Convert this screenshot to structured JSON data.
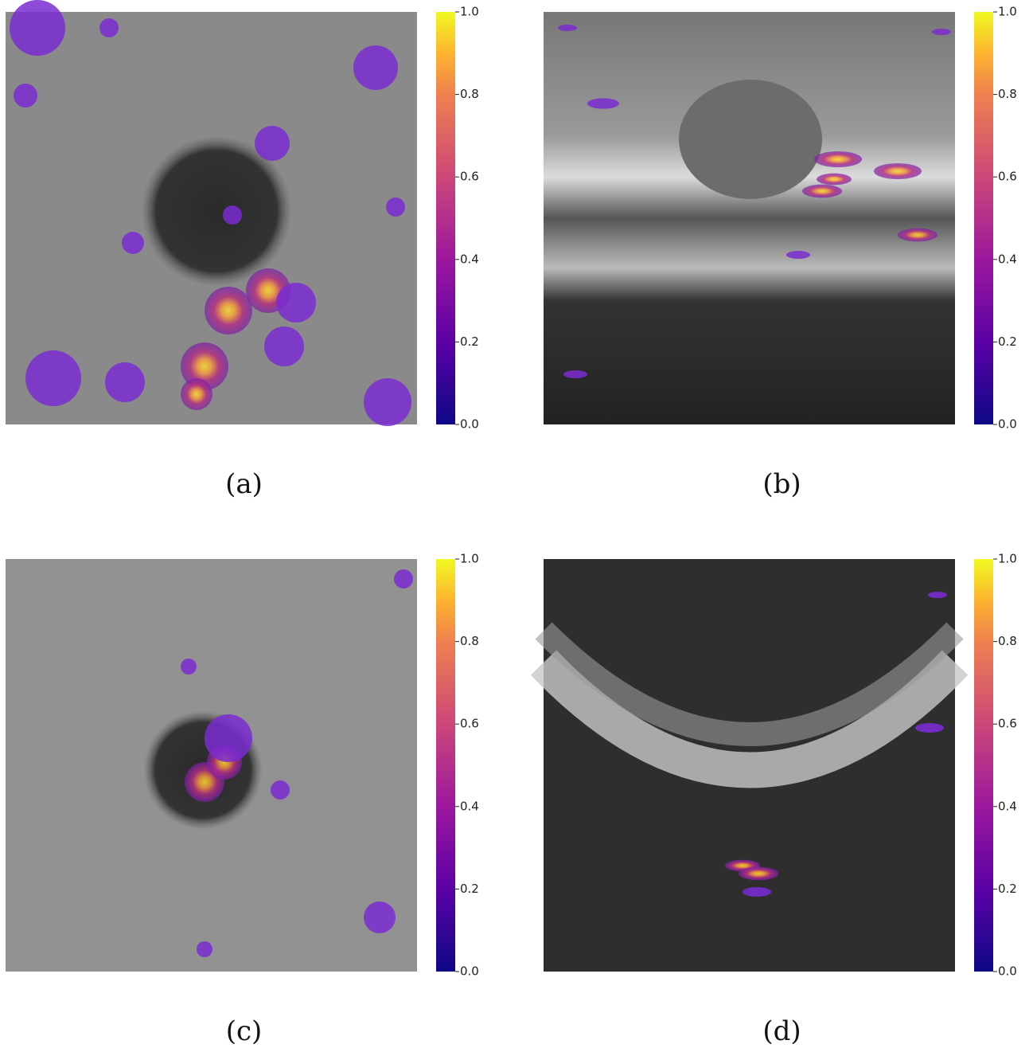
{
  "panels": [
    {
      "caption": "(a)",
      "colorbar": {
        "range": [
          0,
          1
        ],
        "ticks": [
          {
            "value": 0,
            "label": "0.0"
          },
          {
            "value": 0.2,
            "label": "0.2"
          },
          {
            "value": 0.4,
            "label": "0.4"
          },
          {
            "value": 0.6,
            "label": "0.6"
          },
          {
            "value": 0.8,
            "label": "0.8"
          },
          {
            "value": 1,
            "label": "1.0"
          }
        ]
      }
    },
    {
      "caption": "(b)",
      "colorbar": {
        "range": [
          0,
          1
        ],
        "ticks": [
          {
            "value": 0,
            "label": "0.0"
          },
          {
            "value": 0.2,
            "label": "0.2"
          },
          {
            "value": 0.4,
            "label": "0.4"
          },
          {
            "value": 0.6,
            "label": "0.6"
          },
          {
            "value": 0.8,
            "label": "0.8"
          },
          {
            "value": 1,
            "label": "1.0"
          }
        ]
      }
    },
    {
      "caption": "(c)",
      "colorbar": {
        "range": [
          0,
          1
        ],
        "ticks": [
          {
            "value": 0,
            "label": "0.0"
          },
          {
            "value": 0.2,
            "label": "0.2"
          },
          {
            "value": 0.4,
            "label": "0.4"
          },
          {
            "value": 0.6,
            "label": "0.6"
          },
          {
            "value": 0.8,
            "label": "0.8"
          },
          {
            "value": 1,
            "label": "1.0"
          }
        ]
      }
    },
    {
      "caption": "(d)",
      "colorbar": {
        "range": [
          0,
          1
        ],
        "ticks": [
          {
            "value": 0,
            "label": "0.0"
          },
          {
            "value": 0.2,
            "label": "0.2"
          },
          {
            "value": 0.4,
            "label": "0.4"
          },
          {
            "value": 0.6,
            "label": "0.6"
          },
          {
            "value": 0.8,
            "label": "0.8"
          },
          {
            "value": 1,
            "label": "1.0"
          }
        ]
      }
    }
  ]
}
